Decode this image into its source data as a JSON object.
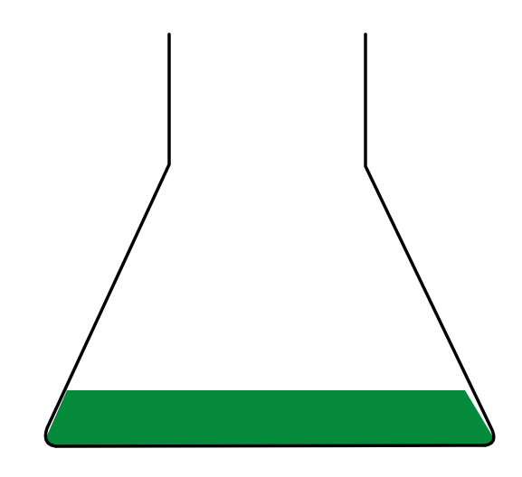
{
  "figure": {
    "subject": "erlenmeyer-flask",
    "liquid_color": "#058a3b",
    "outline_color": "#000000",
    "background_color": "#ffffff"
  }
}
